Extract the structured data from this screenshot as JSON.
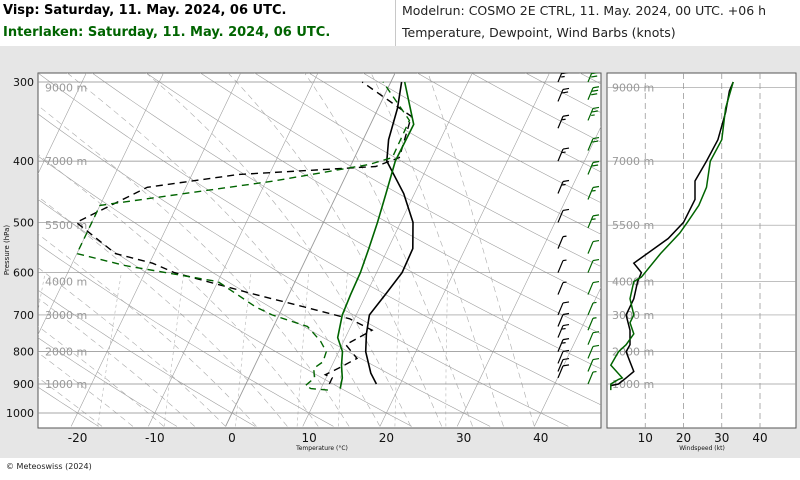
{
  "header": {
    "visp_title": "Visp: Saturday, 11. May. 2024, 06 UTC.",
    "interlaken_title": "Interlaken: Saturday, 11. May. 2024, 06 UTC.",
    "modelrun": "Modelrun: COSMO 2E CTRL, 11. May. 2024, 00 UTC. +06 h",
    "description": "Temperature, Dewpoint, Wind Barbs (knots)"
  },
  "footer": {
    "copyright": "© Meteoswiss (2024)"
  },
  "colors": {
    "visp": "#000000",
    "interlaken": "#006400",
    "grid": "#8c8c8c",
    "background": "#e6e6e6",
    "panel": "#ffffff"
  },
  "chart_data": [
    {
      "type": "line",
      "name": "skew-t",
      "ylabel": "Pressure (hPa)",
      "xlabel": "Temperature (°C)",
      "xlim": [
        -25,
        47
      ],
      "ylim": [
        1050,
        290
      ],
      "y_scale": "log",
      "x_ticks": [
        -20,
        -10,
        0,
        10,
        20,
        30,
        40
      ],
      "y_ticks": [
        300,
        400,
        500,
        600,
        700,
        800,
        900,
        1000
      ],
      "height_labels": [
        "9000 m",
        "7000 m",
        "5500 m",
        "4000 m",
        "3000 m",
        "2000 m",
        "1000 m"
      ],
      "height_label_pressures": [
        306,
        400,
        505,
        620,
        700,
        800,
        900
      ],
      "series": [
        {
          "name": "Visp",
          "color": "#000000",
          "temperature": [
            [
              900,
              16.9
            ],
            [
              865,
              15.5
            ],
            [
              800,
              13.5
            ],
            [
              750,
              12.5
            ],
            [
              700,
              11.7
            ],
            [
              650,
              12.5
            ],
            [
              600,
              13.3
            ],
            [
              550,
              13.2
            ],
            [
              500,
              11.6
            ],
            [
              450,
              8.6
            ],
            [
              400,
              4.4
            ],
            [
              370,
              3.3
            ],
            [
              330,
              2.5
            ],
            [
              300,
              1.4
            ]
          ],
          "dewpoint": [
            [
              900,
              10.8
            ],
            [
              880,
              10.8
            ],
            [
              870,
              9.7
            ],
            [
              850,
              11.0
            ],
            [
              820,
              12.8
            ],
            [
              780,
              10.5
            ],
            [
              740,
              13.0
            ],
            [
              710,
              9.4
            ],
            [
              680,
              2.8
            ],
            [
              650,
              -4.3
            ],
            [
              600,
              -16.2
            ],
            [
              580,
              -19.6
            ],
            [
              560,
              -25.0
            ],
            [
              500,
              -32.0
            ],
            [
              440,
              -25.0
            ],
            [
              420,
              -14.0
            ],
            [
              408,
              3.3
            ],
            [
              395,
              5.8
            ],
            [
              340,
              4.8
            ],
            [
              300,
              -3.7
            ]
          ]
        },
        {
          "name": "Interlaken",
          "color": "#006400",
          "temperature": [
            [
              915,
              12.5
            ],
            [
              880,
              12.1
            ],
            [
              840,
              11.2
            ],
            [
              800,
              10.5
            ],
            [
              760,
              9.0
            ],
            [
              700,
              8.2
            ],
            [
              650,
              8.0
            ],
            [
              600,
              7.9
            ],
            [
              550,
              7.5
            ],
            [
              500,
              7.0
            ],
            [
              450,
              6.3
            ],
            [
              400,
              5.5
            ],
            [
              350,
              5.6
            ],
            [
              300,
              1.8
            ]
          ],
          "dewpoint": [
            [
              920,
              11.0
            ],
            [
              915,
              8.7
            ],
            [
              905,
              7.8
            ],
            [
              880,
              8.5
            ],
            [
              850,
              7.8
            ],
            [
              830,
              8.6
            ],
            [
              800,
              8.4
            ],
            [
              770,
              7.0
            ],
            [
              730,
              4.4
            ],
            [
              700,
              -0.9
            ],
            [
              680,
              -3.5
            ],
            [
              620,
              -10.0
            ],
            [
              585,
              -23.0
            ],
            [
              560,
              -30.0
            ],
            [
              470,
              -30.0
            ],
            [
              430,
              -9.0
            ],
            [
              405,
              2.3
            ],
            [
              395,
              4.9
            ],
            [
              345,
              4.8
            ],
            [
              300,
              -1.0
            ]
          ]
        }
      ],
      "wind_barbs": {
        "Visp": [
          [
            880,
            10
          ],
          [
            860,
            12
          ],
          [
            835,
            13
          ],
          [
            800,
            15
          ],
          [
            760,
            15
          ],
          [
            730,
            12
          ],
          [
            700,
            10
          ],
          [
            650,
            8
          ],
          [
            600,
            5
          ],
          [
            550,
            5
          ],
          [
            500,
            10
          ],
          [
            450,
            15
          ],
          [
            400,
            15
          ],
          [
            355,
            15
          ],
          [
            322,
            20
          ],
          [
            300,
            25
          ]
        ],
        "Interlaken": [
          [
            900,
            5
          ],
          [
            860,
            10
          ],
          [
            820,
            12
          ],
          [
            780,
            10
          ],
          [
            740,
            8
          ],
          [
            700,
            6
          ],
          [
            650,
            10
          ],
          [
            600,
            10
          ],
          [
            560,
            10
          ],
          [
            510,
            15
          ],
          [
            460,
            15
          ],
          [
            420,
            20
          ],
          [
            385,
            20
          ],
          [
            345,
            25
          ],
          [
            320,
            30
          ],
          [
            300,
            30
          ]
        ]
      }
    },
    {
      "type": "line",
      "name": "windspeed-profile",
      "xlabel": "Windspeed (kt)",
      "xlim": [
        0,
        45
      ],
      "ylim": [
        1050,
        290
      ],
      "x_ticks": [
        10,
        20,
        30,
        40
      ],
      "height_labels": [
        "9000 m",
        "7000 m",
        "5500 m",
        "4000 m",
        "3000 m",
        "2000 m",
        "1000 m"
      ],
      "series": [
        {
          "name": "Visp",
          "color": "#000000",
          "x": [
            1,
            3,
            5,
            7,
            6,
            5,
            6,
            6,
            5,
            7,
            8,
            9,
            8,
            7,
            16,
            20,
            23,
            23,
            26,
            29,
            31,
            32,
            33
          ],
          "p": [
            905,
            900,
            880,
            860,
            830,
            800,
            780,
            740,
            700,
            660,
            620,
            600,
            590,
            580,
            530,
            500,
            460,
            430,
            400,
            370,
            335,
            310,
            300
          ]
        },
        {
          "name": "Interlaken",
          "color": "#006400",
          "x": [
            1,
            1,
            3,
            4,
            1,
            3,
            5,
            7,
            6,
            7,
            6,
            7,
            9,
            14,
            19,
            21,
            24,
            26,
            27,
            30,
            31,
            33
          ],
          "p": [
            920,
            900,
            885,
            880,
            840,
            800,
            780,
            750,
            720,
            700,
            660,
            620,
            610,
            560,
            520,
            500,
            470,
            440,
            400,
            370,
            330,
            300
          ]
        }
      ]
    }
  ]
}
